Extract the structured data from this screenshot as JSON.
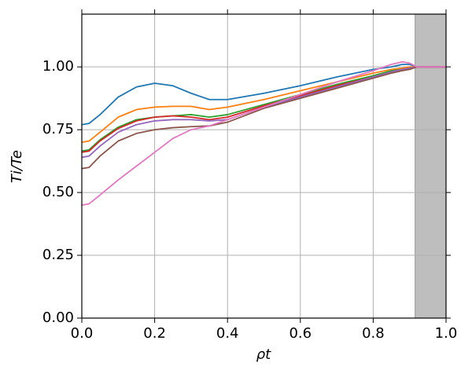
{
  "chart_data": {
    "type": "line",
    "xlabel": "ρt",
    "ylabel": "Ti/Te",
    "x": [
      0,
      0.02,
      0.05,
      0.1,
      0.15,
      0.2,
      0.25,
      0.3,
      0.35,
      0.4,
      0.5,
      0.6,
      0.7,
      0.8,
      0.85,
      0.88,
      0.9,
      0.92,
      0.95,
      1.0
    ],
    "series": [
      {
        "color": "#1f77b4",
        "values": [
          0.77,
          0.775,
          0.81,
          0.88,
          0.92,
          0.935,
          0.925,
          0.895,
          0.87,
          0.87,
          0.895,
          0.925,
          0.96,
          0.99,
          1.0,
          1.01,
          1.01,
          1.0,
          1.0,
          1.0
        ]
      },
      {
        "color": "#ff7f0e",
        "values": [
          0.7,
          0.705,
          0.74,
          0.8,
          0.83,
          0.84,
          0.843,
          0.843,
          0.83,
          0.84,
          0.87,
          0.905,
          0.94,
          0.975,
          0.99,
          0.995,
          1.0,
          1.0,
          1.0,
          1.0
        ]
      },
      {
        "color": "#2ca02c",
        "values": [
          0.665,
          0.67,
          0.71,
          0.76,
          0.79,
          0.8,
          0.805,
          0.81,
          0.8,
          0.81,
          0.85,
          0.89,
          0.93,
          0.965,
          0.985,
          0.99,
          0.995,
          1.0,
          1.0,
          1.0
        ]
      },
      {
        "color": "#d62728",
        "values": [
          0.66,
          0.665,
          0.705,
          0.755,
          0.785,
          0.8,
          0.805,
          0.8,
          0.79,
          0.8,
          0.845,
          0.885,
          0.925,
          0.96,
          0.98,
          0.99,
          0.995,
          1.0,
          1.0,
          1.0
        ]
      },
      {
        "color": "#9467bd",
        "values": [
          0.64,
          0.645,
          0.685,
          0.74,
          0.77,
          0.785,
          0.79,
          0.79,
          0.785,
          0.79,
          0.84,
          0.88,
          0.92,
          0.96,
          0.98,
          0.99,
          0.995,
          1.0,
          1.0,
          1.0
        ]
      },
      {
        "color": "#8c564b",
        "values": [
          0.595,
          0.6,
          0.645,
          0.705,
          0.735,
          0.75,
          0.758,
          0.762,
          0.765,
          0.78,
          0.835,
          0.875,
          0.915,
          0.955,
          0.975,
          0.985,
          0.99,
          1.0,
          1.0,
          1.0
        ]
      },
      {
        "color": "#e377c2",
        "values": [
          0.45,
          0.455,
          0.49,
          0.55,
          0.605,
          0.66,
          0.715,
          0.75,
          0.765,
          0.79,
          0.84,
          0.89,
          0.94,
          0.985,
          1.01,
          1.02,
          1.015,
          1.0,
          1.0,
          1.0
        ]
      }
    ],
    "shaded_region": [
      0.915,
      1.0
    ],
    "shaded_color": "#bebebe",
    "xlim": [
      0,
      1.0
    ],
    "ylim": [
      0,
      1.21
    ],
    "xticks": [
      {
        "value": 0,
        "label": "0.0"
      },
      {
        "value": 0.2,
        "label": "0.2"
      },
      {
        "value": 0.4,
        "label": "0.4"
      },
      {
        "value": 0.6,
        "label": "0.6"
      },
      {
        "value": 0.8,
        "label": "0.8"
      },
      {
        "value": 1.0,
        "label": "1.0"
      }
    ],
    "yticks": [
      {
        "value": 0,
        "label": "0.00"
      },
      {
        "value": 0.25,
        "label": "0.25"
      },
      {
        "value": 0.5,
        "label": "0.50"
      },
      {
        "value": 0.75,
        "label": "0.75"
      },
      {
        "value": 1.0,
        "label": "1.00"
      }
    ],
    "grid": true
  }
}
